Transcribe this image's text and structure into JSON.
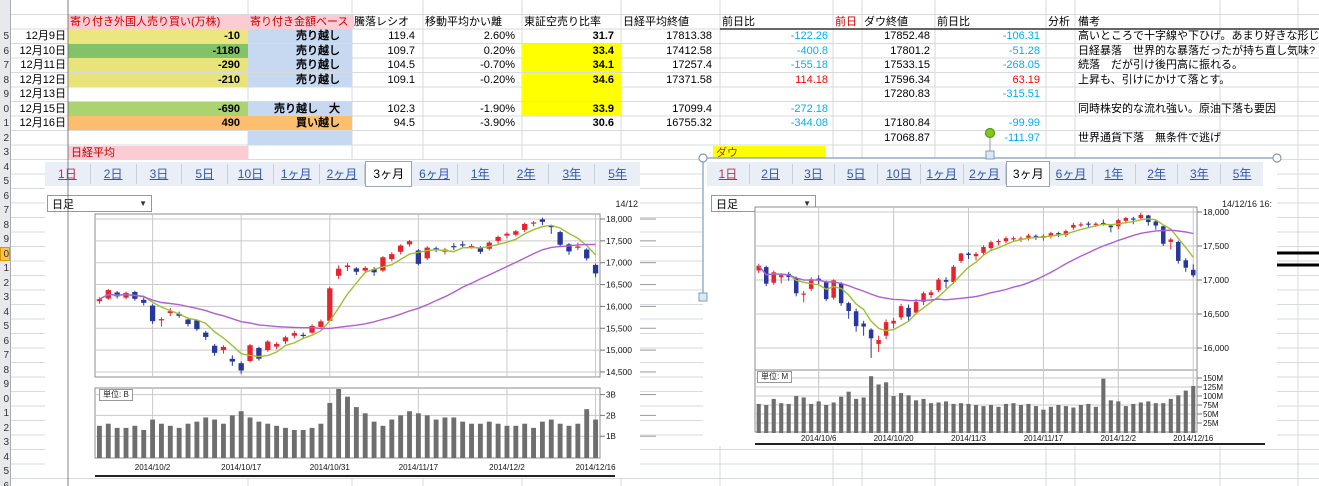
{
  "labels": {
    "nikkei_section": "日経平均",
    "dow_section": "ダウ"
  },
  "colors": {
    "up_candle": "#e8232d",
    "down_candle": "#27379b",
    "ma_short": "#9dc030",
    "ma_long": "#b05fd0",
    "volume_bar": "#6e6e6e",
    "chart_grid": "#c9c9c9",
    "negative_value": "#00b0f0",
    "positive_value": "#ff0000",
    "pink_header": "#fbccd4",
    "header_text_red": "#cc0000",
    "blue_fill": "#c7d9f1",
    "yellow_fill": "#ffff00",
    "orange_fill": "#fbbf6e",
    "row_highlight": "#fbc34c"
  },
  "table": {
    "headers": {
      "foreign": "寄り付き外国人売り買い(万株)",
      "amount": "寄り付き金額ベース",
      "ratio": "騰落レシオ",
      "kairi": "移動平均かい離",
      "short_ratio": "東証空売り比率",
      "nikkei_close": "日経平均終値",
      "nikkei_chg": "前日比",
      "prev": "前日",
      "dow_close": "ダウ終値",
      "dow_chg": "前日比",
      "analysis": "分析",
      "note": "備考"
    },
    "rows": [
      {
        "date": "12月9日",
        "foreign": "-10",
        "foreign_bg": "#ebe77e",
        "amount": "売り越し",
        "amount_bg": "#c7d9f1",
        "ratio": "119.4",
        "kairi": "2.60%",
        "short": "31.7",
        "short_bg": "",
        "nikkei": "17813.38",
        "nikkei_chg": "-122.26",
        "nikkei_chg_color": "#00b0f0",
        "dow": "17852.48",
        "dow_chg": "-106.31",
        "dow_chg_color": "#00b0f0",
        "note": "高いところで十字線や下ひげ。あまり好きな形じゃない"
      },
      {
        "date": "12月10日",
        "foreign": "-1180",
        "foreign_bg": "#82c36a",
        "amount": "売り越し",
        "amount_bg": "#c7d9f1",
        "ratio": "109.7",
        "kairi": "0.20%",
        "short": "33.4",
        "short_bg": "#ffff00",
        "nikkei": "17412.58",
        "nikkei_chg": "-400.8",
        "nikkei_chg_color": "#00b0f0",
        "dow": "17801.2",
        "dow_chg": "-51.28",
        "dow_chg_color": "#00b0f0",
        "note": "日経暴落　世界的な暴落だったが持ち直し気味?"
      },
      {
        "date": "12月11日",
        "foreign": "-290",
        "foreign_bg": "#e8e47a",
        "amount": "売り越し",
        "amount_bg": "#c7d9f1",
        "ratio": "104.5",
        "kairi": "-0.70%",
        "short": "34.1",
        "short_bg": "#ffff00",
        "nikkei": "17257.4",
        "nikkei_chg": "-155.18",
        "nikkei_chg_color": "#00b0f0",
        "dow": "17533.15",
        "dow_chg": "-268.05",
        "dow_chg_color": "#00b0f0",
        "note": "続落　だが引け後円高に振れる。"
      },
      {
        "date": "12月12日",
        "foreign": "-210",
        "foreign_bg": "#e8e47a",
        "amount": "売り越し",
        "amount_bg": "#c7d9f1",
        "ratio": "109.1",
        "kairi": "-0.20%",
        "short": "34.6",
        "short_bg": "#ffff00",
        "nikkei": "17371.58",
        "nikkei_chg": "114.18",
        "nikkei_chg_color": "#ff0000",
        "dow": "17596.34",
        "dow_chg": "63.19",
        "dow_chg_color": "#ff0000",
        "note": "上昇も、引けにかけて落とす。"
      },
      {
        "date": "12月13日",
        "foreign": "",
        "foreign_bg": "",
        "amount": "",
        "amount_bg": "",
        "short_bg": "#ffff00",
        "ratio": "",
        "kairi": "",
        "short": "",
        "nikkei": "",
        "nikkei_chg": "",
        "nikkei_chg_color": "",
        "dow": "17280.83",
        "dow_chg": "-315.51",
        "dow_chg_color": "#00b0f0",
        "note": ""
      },
      {
        "date": "12月15日",
        "foreign": "-690",
        "foreign_bg": "#abd36f",
        "amount": "売り越し　大",
        "amount_bg": "#c7d9f1",
        "ratio": "102.3",
        "kairi": "-1.90%",
        "short": "33.9",
        "short_bg": "#ffff00",
        "nikkei": "17099.4",
        "nikkei_chg": "-272.18",
        "nikkei_chg_color": "#00b0f0",
        "dow": "",
        "dow_chg": "",
        "dow_chg_color": "",
        "note": "同時株安的な流れ強い。原油下落も要因"
      },
      {
        "date": "12月16日",
        "foreign": "490",
        "foreign_bg": "#fcbe6e",
        "amount": "買い越し",
        "amount_bg": "#fbbf6e",
        "ratio": "94.5",
        "kairi": "-3.90%",
        "short": "30.6",
        "short_bg": "",
        "nikkei": "16755.32",
        "nikkei_chg": "-344.08",
        "nikkei_chg_color": "#00b0f0",
        "dow": "17180.84",
        "dow_chg": "-99.99",
        "dow_chg_color": "#00b0f0",
        "note": ""
      },
      {
        "date": "",
        "foreign": "",
        "foreign_bg": "",
        "amount": "",
        "amount_bg": "#c7d9f1",
        "short_bg": "",
        "ratio": "",
        "kairi": "",
        "short": "",
        "nikkei": "",
        "nikkei_chg": "",
        "nikkei_chg_color": "",
        "dow": "17068.87",
        "dow_chg": "-111.97",
        "dow_chg_color": "#00b0f0",
        "note": "世界通貨下落　無条件で逃げ"
      }
    ]
  },
  "period_tabs": {
    "items": [
      "1日",
      "2日",
      "3日",
      "5日",
      "10日",
      "1ヶ月",
      "2ヶ月",
      "3ヶ月",
      "6ヶ月",
      "1年",
      "2年",
      "3年",
      "5年"
    ],
    "selected": "3ヶ月",
    "visited": "1日"
  },
  "chart_left": {
    "dropdown_value": "日足",
    "timestamp": "14/12",
    "unit_label": "単位: B"
  },
  "chart_right": {
    "dropdown_value": "日足",
    "timestamp": "14/12/16 16:",
    "unit_label": "単位: M"
  },
  "chart_data": [
    {
      "type": "candlestick",
      "title": "日経平均",
      "interval": "日足",
      "range": "3ヶ月",
      "volume_unit": "B",
      "y_ticks": [
        {
          "v": 18000,
          "label": "18,000"
        },
        {
          "v": 17500,
          "label": "17,500"
        },
        {
          "v": 17000,
          "label": "17,000"
        },
        {
          "v": 16500,
          "label": "16,500"
        },
        {
          "v": 16000,
          "label": "16,000"
        },
        {
          "v": 15500,
          "label": "15,500"
        },
        {
          "v": 15000,
          "label": "15,000"
        },
        {
          "v": 14500,
          "label": "14,500"
        }
      ],
      "vol_ticks": [
        {
          "v": 3,
          "label": "3B"
        },
        {
          "v": 2,
          "label": "2B"
        },
        {
          "v": 1,
          "label": "1B"
        }
      ],
      "x_ticks": [
        {
          "i": 6,
          "label": "2014/10/2"
        },
        {
          "i": 16,
          "label": "2014/10/17"
        },
        {
          "i": 26,
          "label": "2014/10/31"
        },
        {
          "i": 36,
          "label": "2014/11/17"
        },
        {
          "i": 46,
          "label": "2014/12/2"
        },
        {
          "i": 56,
          "label": "2014/12/16"
        }
      ],
      "candles": [
        [
          16120,
          16167,
          16060,
          16210
        ],
        [
          16180,
          16374,
          16150,
          16400
        ],
        [
          16320,
          16230,
          16180,
          16350
        ],
        [
          16200,
          16310,
          16160,
          16340
        ],
        [
          16330,
          16174,
          16130,
          16360
        ],
        [
          16150,
          16082,
          16020,
          16200
        ],
        [
          16020,
          15662,
          15600,
          16050
        ],
        [
          15680,
          15709,
          15540,
          15750
        ],
        [
          15850,
          15891,
          15780,
          15960
        ],
        [
          15830,
          15784,
          15740,
          15880
        ],
        [
          15700,
          15596,
          15540,
          15750
        ],
        [
          15680,
          15479,
          15440,
          15700
        ],
        [
          15400,
          15301,
          15230,
          15440
        ],
        [
          15100,
          14937,
          14870,
          15140
        ],
        [
          15000,
          15074,
          14920,
          15110
        ],
        [
          14800,
          14738,
          14640,
          14880
        ],
        [
          14700,
          14533,
          14460,
          14740
        ],
        [
          14750,
          15111,
          14720,
          15140
        ],
        [
          15050,
          14804,
          14760,
          15080
        ],
        [
          15000,
          15196,
          14960,
          15230
        ],
        [
          15080,
          15139,
          15020,
          15180
        ],
        [
          15200,
          15292,
          15140,
          15330
        ],
        [
          15330,
          15389,
          15270,
          15440
        ],
        [
          15350,
          15329,
          15280,
          15400
        ],
        [
          15400,
          15554,
          15370,
          15590
        ],
        [
          15530,
          15658,
          15480,
          15700
        ],
        [
          15670,
          16414,
          15660,
          16450
        ],
        [
          16700,
          16862,
          16630,
          16940
        ],
        [
          16900,
          16937,
          16810,
          16990
        ],
        [
          16870,
          16793,
          16720,
          16900
        ],
        [
          16820,
          16880,
          16770,
          16920
        ],
        [
          16850,
          16780,
          16700,
          16900
        ],
        [
          16820,
          17124,
          16790,
          17150
        ],
        [
          17080,
          17197,
          17030,
          17240
        ],
        [
          17250,
          17393,
          17190,
          17420
        ],
        [
          17420,
          17491,
          17370,
          17520
        ],
        [
          17280,
          16974,
          16940,
          17310
        ],
        [
          17100,
          17345,
          17060,
          17380
        ],
        [
          17330,
          17289,
          17240,
          17370
        ],
        [
          17250,
          17300,
          17190,
          17340
        ],
        [
          17380,
          17358,
          17290,
          17450
        ],
        [
          17420,
          17408,
          17340,
          17490
        ],
        [
          17380,
          17384,
          17320,
          17430
        ],
        [
          17350,
          17249,
          17200,
          17380
        ],
        [
          17320,
          17460,
          17280,
          17490
        ],
        [
          17500,
          17590,
          17440,
          17620
        ],
        [
          17620,
          17663,
          17560,
          17700
        ],
        [
          17640,
          17720,
          17600,
          17750
        ],
        [
          17750,
          17887,
          17700,
          17920
        ],
        [
          17900,
          17921,
          17830,
          17950
        ],
        [
          17990,
          17935,
          17860,
          18030
        ],
        [
          17850,
          17813,
          17660,
          17870
        ],
        [
          17700,
          17412,
          17380,
          17730
        ],
        [
          17420,
          17257,
          17180,
          17450
        ],
        [
          17340,
          17371,
          17290,
          17460
        ],
        [
          17300,
          17099,
          17050,
          17330
        ],
        [
          16950,
          16755,
          16670,
          16980
        ]
      ],
      "volumes": [
        1.5,
        1.6,
        1.4,
        1.4,
        1.5,
        1.3,
        1.8,
        1.6,
        1.5,
        1.4,
        1.6,
        1.7,
        1.9,
        1.8,
        1.6,
        2.0,
        2.2,
        1.9,
        1.7,
        1.6,
        1.5,
        1.4,
        1.3,
        1.3,
        1.4,
        1.6,
        2.6,
        3.3,
        2.9,
        2.4,
        2.1,
        1.7,
        1.5,
        1.8,
        2.0,
        2.2,
        2.1,
        2.0,
        1.8,
        1.9,
        1.9,
        1.7,
        1.6,
        1.6,
        1.7,
        1.6,
        1.5,
        1.5,
        1.6,
        1.4,
        1.7,
        1.8,
        1.6,
        1.5,
        1.6,
        2.3,
        1.8
      ]
    },
    {
      "type": "candlestick",
      "title": "ダウ",
      "interval": "日足",
      "range": "3ヶ月",
      "volume_unit": "M",
      "y_ticks": [
        {
          "v": 18000,
          "label": "18,000"
        },
        {
          "v": 17500,
          "label": "17,500"
        },
        {
          "v": 17000,
          "label": "17,000"
        },
        {
          "v": 16500,
          "label": "16,500"
        },
        {
          "v": 16000,
          "label": "16,000"
        }
      ],
      "vol_ticks": [
        {
          "v": 150,
          "label": "150M"
        },
        {
          "v": 125,
          "label": "125M"
        },
        {
          "v": 100,
          "label": "100M"
        },
        {
          "v": 75,
          "label": "75M"
        },
        {
          "v": 50,
          "label": "50M"
        },
        {
          "v": 25,
          "label": "25M"
        }
      ],
      "x_ticks": [
        {
          "i": 8,
          "label": "2014/10/6"
        },
        {
          "i": 18,
          "label": "2014/10/20"
        },
        {
          "i": 28,
          "label": "2014/11/3"
        },
        {
          "i": 38,
          "label": "2014/11/17"
        },
        {
          "i": 48,
          "label": "2014/12/2"
        },
        {
          "i": 58,
          "label": "2014/12/16"
        }
      ],
      "candles": [
        [
          17140,
          17210,
          17100,
          17240
        ],
        [
          17190,
          16946,
          16910,
          17210
        ],
        [
          16960,
          17113,
          16930,
          17140
        ],
        [
          17040,
          17071,
          16950,
          17100
        ],
        [
          17090,
          17043,
          16990,
          17120
        ],
        [
          17030,
          16805,
          16760,
          17050
        ],
        [
          16800,
          16801,
          16670,
          16840
        ],
        [
          16870,
          17010,
          16840,
          17040
        ],
        [
          17020,
          16991,
          16940,
          17070
        ],
        [
          16970,
          16719,
          16690,
          16990
        ],
        [
          16740,
          16994,
          16710,
          17010
        ],
        [
          16950,
          16659,
          16620,
          16970
        ],
        [
          16660,
          16544,
          16430,
          16680
        ],
        [
          16540,
          16321,
          16240,
          16580
        ],
        [
          16360,
          16315,
          16180,
          16400
        ],
        [
          16270,
          16142,
          15855,
          16290
        ],
        [
          16060,
          16117,
          15940,
          16180
        ],
        [
          16180,
          16380,
          16130,
          16420
        ],
        [
          16360,
          16400,
          16290,
          16440
        ],
        [
          16450,
          16615,
          16410,
          16650
        ],
        [
          16590,
          16461,
          16400,
          16640
        ],
        [
          16520,
          16678,
          16490,
          16720
        ],
        [
          16680,
          16805,
          16630,
          16830
        ],
        [
          16780,
          16818,
          16730,
          16850
        ],
        [
          16850,
          17006,
          16820,
          17030
        ],
        [
          17000,
          16974,
          16880,
          17040
        ],
        [
          16970,
          17195,
          16940,
          17220
        ],
        [
          17280,
          17390,
          17250,
          17400
        ],
        [
          17390,
          17367,
          17310,
          17410
        ],
        [
          17350,
          17384,
          17290,
          17410
        ],
        [
          17400,
          17485,
          17370,
          17510
        ],
        [
          17470,
          17555,
          17430,
          17580
        ],
        [
          17560,
          17574,
          17510,
          17600
        ],
        [
          17570,
          17614,
          17540,
          17640
        ],
        [
          17610,
          17615,
          17570,
          17640
        ],
        [
          17600,
          17612,
          17560,
          17640
        ],
        [
          17620,
          17653,
          17580,
          17680
        ],
        [
          17650,
          17635,
          17590,
          17670
        ],
        [
          17620,
          17648,
          17580,
          17670
        ],
        [
          17650,
          17688,
          17610,
          17710
        ],
        [
          17690,
          17686,
          17630,
          17710
        ],
        [
          17660,
          17719,
          17630,
          17740
        ],
        [
          17770,
          17810,
          17740,
          17840
        ],
        [
          17810,
          17818,
          17780,
          17850
        ],
        [
          17830,
          17815,
          17770,
          17860
        ],
        [
          17810,
          17828,
          17780,
          17850
        ],
        [
          17840,
          17828,
          17800,
          17890
        ],
        [
          17800,
          17776,
          17700,
          17820
        ],
        [
          17790,
          17880,
          17750,
          17900
        ],
        [
          17870,
          17912,
          17830,
          17930
        ],
        [
          17905,
          17900,
          17820,
          17930
        ],
        [
          17910,
          17959,
          17880,
          17990
        ],
        [
          17950,
          17852,
          17800,
          17960
        ],
        [
          17860,
          17801,
          17740,
          17880
        ],
        [
          17790,
          17533,
          17500,
          17800
        ],
        [
          17560,
          17596,
          17450,
          17620
        ],
        [
          17560,
          17281,
          17240,
          17580
        ],
        [
          17290,
          17181,
          17120,
          17320
        ],
        [
          17150,
          17069,
          17040,
          17230
        ]
      ],
      "volumes": [
        78,
        75,
        92,
        80,
        78,
        100,
        96,
        78,
        85,
        75,
        82,
        98,
        112,
        92,
        96,
        155,
        132,
        138,
        100,
        108,
        102,
        88,
        92,
        80,
        82,
        85,
        78,
        80,
        78,
        75,
        72,
        75,
        70,
        78,
        80,
        75,
        78,
        72,
        62,
        70,
        75,
        72,
        68,
        75,
        78,
        70,
        148,
        88,
        85,
        72,
        78,
        82,
        85,
        80,
        80,
        92,
        102,
        115,
        128
      ]
    }
  ]
}
